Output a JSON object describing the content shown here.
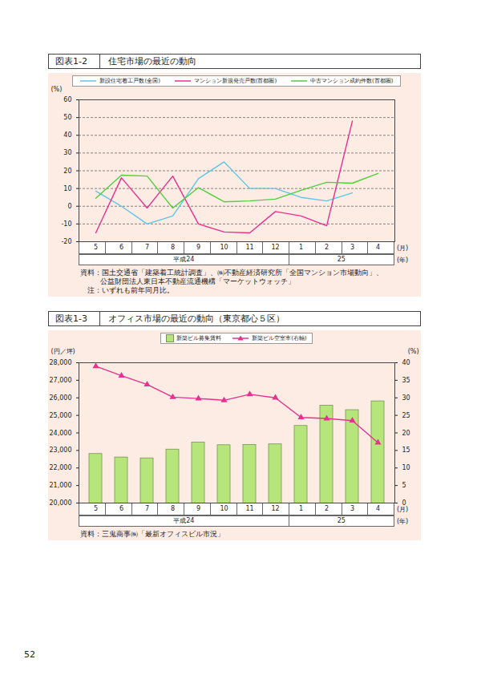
{
  "page_number": "52",
  "chart_data": [
    {
      "type": "line",
      "figure_label": "図表1-2",
      "title": "住宅市場の最近の動向",
      "y_label": "(%)",
      "x_unit": "(月)",
      "year_unit": "(年)",
      "categories": [
        "5",
        "6",
        "7",
        "8",
        "9",
        "10",
        "11",
        "12",
        "1",
        "2",
        "3",
        "4"
      ],
      "year_groups": [
        {
          "label": "平成24",
          "months": 8
        },
        {
          "label": "25",
          "months": 4
        }
      ],
      "series": [
        {
          "name": "新設住宅着工戸数(全国)",
          "color": "#5cc6e6",
          "values": [
            8.5,
            0,
            -10,
            -5.5,
            15.5,
            25,
            10,
            10,
            5,
            3,
            7.5,
            null
          ]
        },
        {
          "name": "マンション新規発売戸数(首都圏)",
          "color": "#e8318f",
          "values": [
            -15,
            16,
            -1,
            17,
            -10,
            -14.5,
            -15,
            -3,
            -5.5,
            -11,
            48,
            null
          ]
        },
        {
          "name": "中古マンション成約件数(首都圏)",
          "color": "#4fcf3c",
          "values": [
            4.5,
            17.5,
            17,
            -1,
            10.5,
            2.5,
            3,
            4,
            9,
            13.5,
            13,
            18.5
          ]
        }
      ],
      "ylim": [
        -20,
        60
      ],
      "yticks": [
        -20,
        -10,
        0,
        10,
        20,
        30,
        40,
        50,
        60
      ],
      "grid": true,
      "legend": "top",
      "notes": [
        "資料：国土交通省「建築着工統計調査」、㈱不動産経済研究所「全国マンション市場動向」、",
        "公益財団法人東日本不動産流通機構「マーケットウォッチ」",
        "注：いずれも前年同月比。"
      ]
    },
    {
      "type": "bar",
      "figure_label": "図表1-3",
      "title": "オフィス市場の最近の動向（東京都心５区）",
      "y_label": "(円／坪)",
      "y2_label": "(%)",
      "x_unit": "(月)",
      "year_unit": "(年)",
      "categories": [
        "5",
        "6",
        "7",
        "8",
        "9",
        "10",
        "11",
        "12",
        "1",
        "2",
        "3",
        "4"
      ],
      "year_groups": [
        {
          "label": "平成24",
          "months": 8
        },
        {
          "label": "25",
          "months": 4
        }
      ],
      "series": [
        {
          "name": "新築ビル募集賃料",
          "type": "bar",
          "color": "#b6e57c",
          "values": [
            22800,
            22600,
            22550,
            23050,
            23450,
            23300,
            23320,
            23350,
            24400,
            25550,
            25300,
            25800
          ]
        },
        {
          "name": "新築ビル空室率(右軸)",
          "type": "line",
          "axis": "y2",
          "color": "#e8318f",
          "marker": "triangle",
          "values": [
            39,
            36.3,
            33.8,
            30.2,
            29.8,
            29.3,
            31,
            30,
            24.4,
            24.1,
            23.5,
            17.2
          ]
        }
      ],
      "ylim": [
        20000,
        28000
      ],
      "yticks": [
        {
          "value": 20000,
          "label": "20,000"
        },
        {
          "value": 21000,
          "label": "21,000"
        },
        {
          "value": 22000,
          "label": "22,000"
        },
        {
          "value": 23000,
          "label": "23,000"
        },
        {
          "value": 24000,
          "label": "24,000"
        },
        {
          "value": 25000,
          "label": "25,000"
        },
        {
          "value": 26000,
          "label": "26,000"
        },
        {
          "value": 27000,
          "label": "27,000"
        },
        {
          "value": 28000,
          "label": "28,000"
        }
      ],
      "y2lim": [
        0,
        40
      ],
      "y2ticks": [
        0,
        5,
        10,
        15,
        20,
        25,
        30,
        35,
        40
      ],
      "grid": false,
      "legend": "top",
      "notes": [
        "資料：三鬼商事㈱「最新オフィスビル市況」"
      ]
    }
  ]
}
